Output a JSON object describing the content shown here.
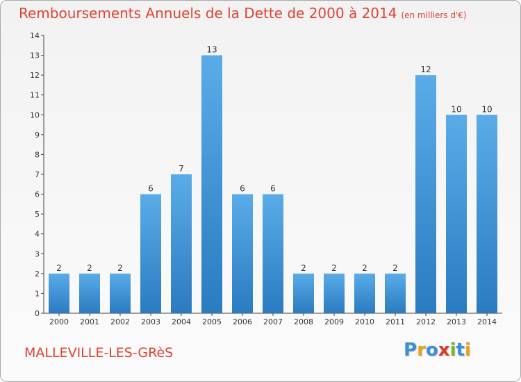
{
  "title": "Remboursements Annuels de la Dette de 2000 à 2014",
  "subtitle": "(en milliers d'€)",
  "commune": "MALLEVILLE-LES-GRèS",
  "logo": {
    "text": "Proxiti",
    "letters": [
      {
        "ch": "P",
        "color": "#3b8fd6"
      },
      {
        "ch": "r",
        "color": "#e8a21a"
      },
      {
        "ch": "o",
        "color": "#3b8fd6"
      },
      {
        "ch": "x",
        "color": "#dd3b2a"
      },
      {
        "ch": "i",
        "color": "#7cb52a"
      },
      {
        "ch": "t",
        "color": "#3b8fd6"
      },
      {
        "ch": "i",
        "color": "#e8a21a"
      }
    ]
  },
  "colors": {
    "title": "#dd4433",
    "bar_light": "#5aace8",
    "bar_dark": "#2a7bc0"
  },
  "chart_data": {
    "type": "bar",
    "title": "Remboursements Annuels de la Dette de 2000 à 2014",
    "subtitle": "(en milliers d'€)",
    "categories": [
      "2000",
      "2001",
      "2002",
      "2003",
      "2004",
      "2005",
      "2006",
      "2007",
      "2008",
      "2009",
      "2010",
      "2011",
      "2012",
      "2013",
      "2014"
    ],
    "values": [
      2,
      2,
      2,
      6,
      7,
      13,
      6,
      6,
      2,
      2,
      2,
      2,
      12,
      10,
      10
    ],
    "ylim": [
      0,
      14
    ],
    "yticks": [
      0,
      1,
      2,
      3,
      4,
      5,
      6,
      7,
      8,
      9,
      10,
      11,
      12,
      13,
      14
    ],
    "grid": false,
    "data_labels": true
  }
}
